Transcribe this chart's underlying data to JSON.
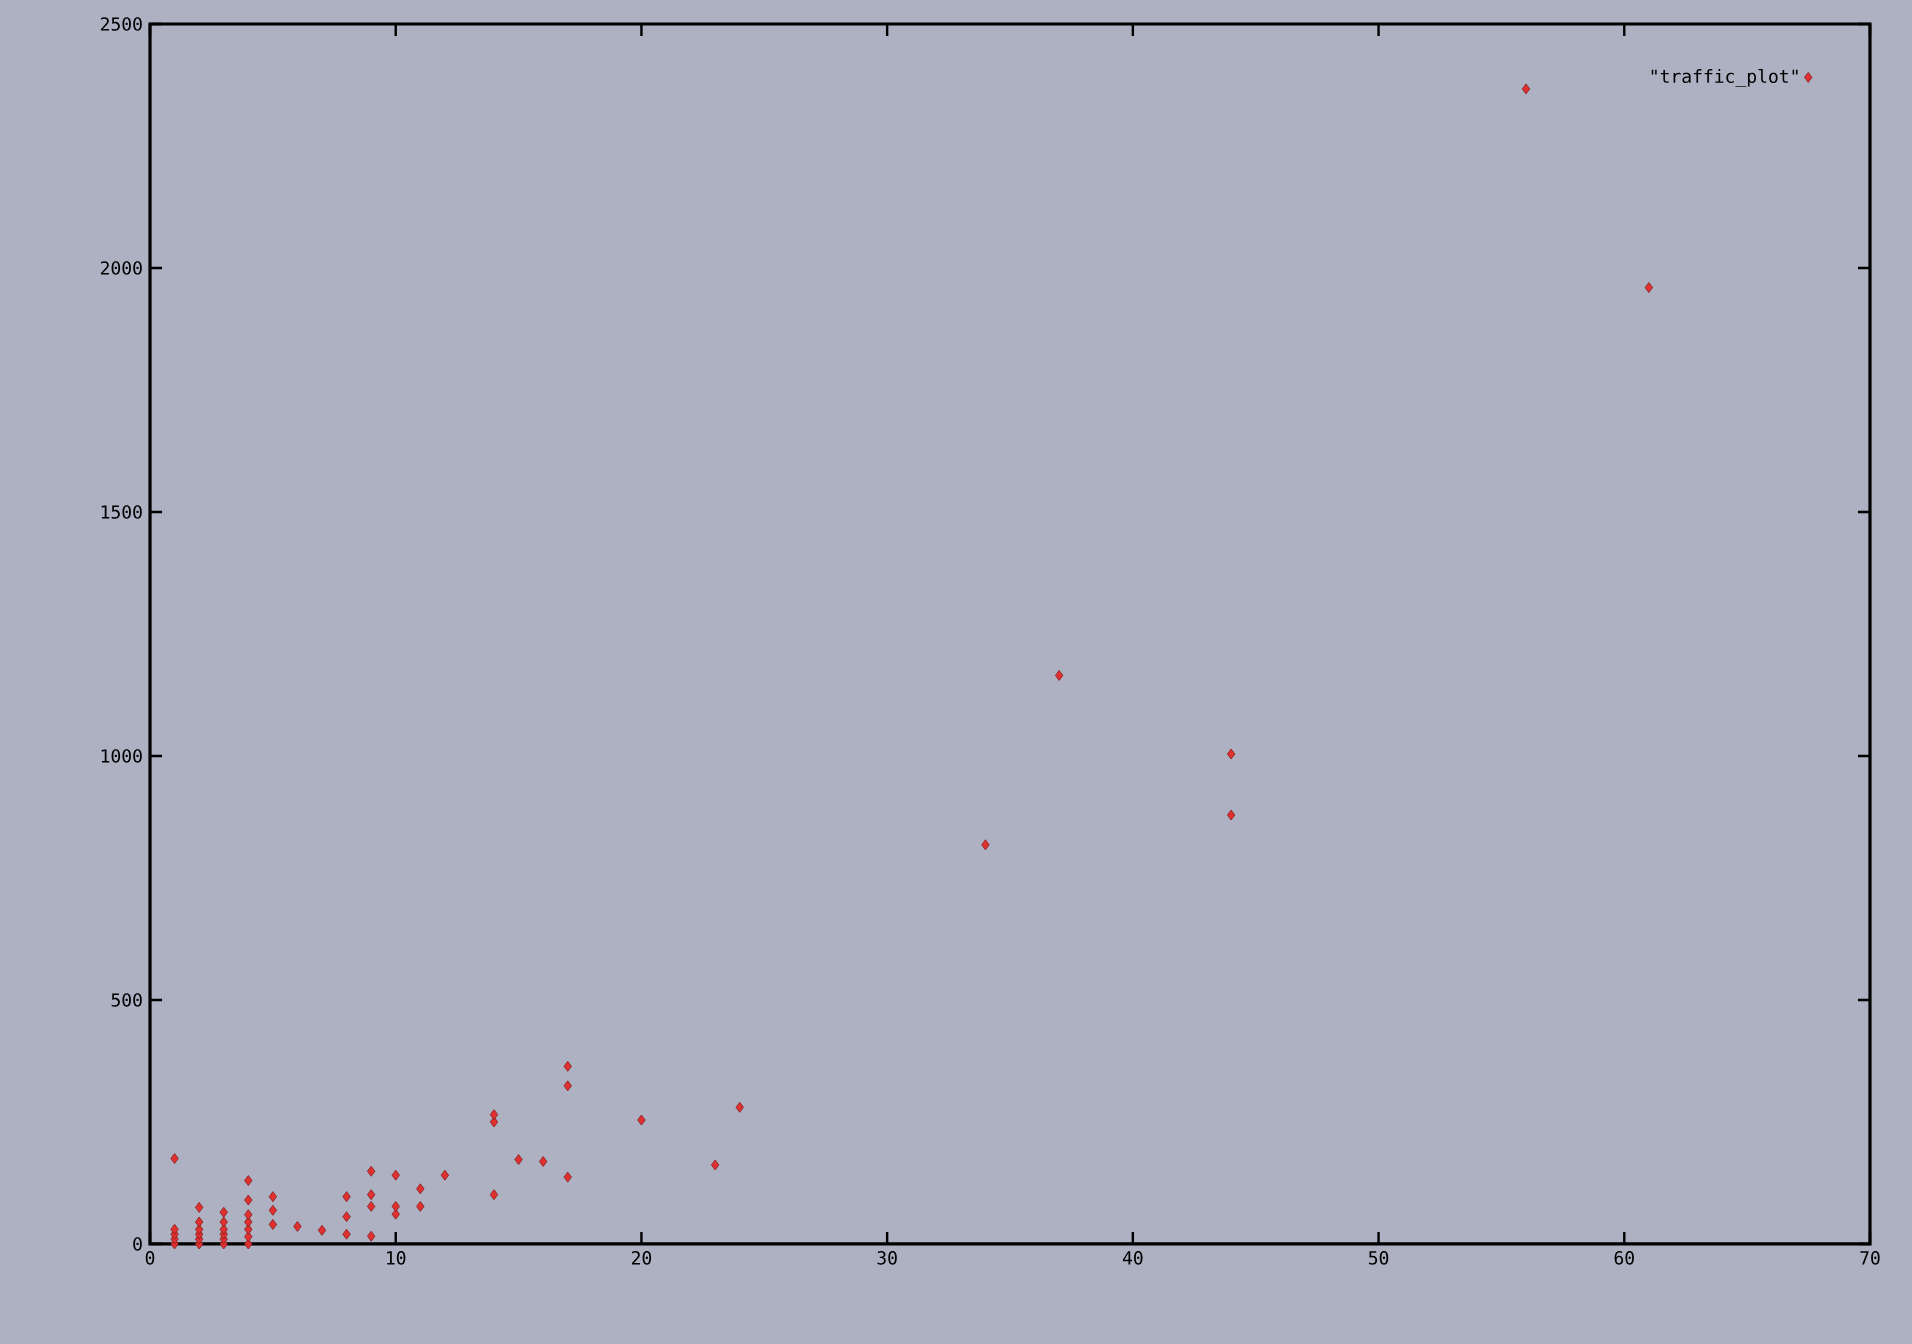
{
  "chart_data": {
    "type": "scatter",
    "xlim": [
      0,
      70
    ],
    "ylim": [
      0,
      2500
    ],
    "xticks": [
      0,
      10,
      20,
      30,
      40,
      50,
      60,
      70
    ],
    "yticks": [
      0,
      500,
      1000,
      1500,
      2000,
      2500
    ],
    "legend": "top right",
    "marker": "diamond",
    "grid": false,
    "series": [
      {
        "name": "\"traffic_plot\"",
        "color": "#e03030",
        "x": [
          1,
          1,
          1,
          1,
          1,
          2,
          2,
          2,
          2,
          2,
          2,
          3,
          3,
          3,
          3,
          3,
          3,
          4,
          4,
          4,
          4,
          4,
          4,
          4,
          5,
          5,
          5,
          6,
          7,
          8,
          8,
          8,
          9,
          9,
          9,
          9,
          10,
          10,
          10,
          11,
          11,
          12,
          14,
          14,
          14,
          15,
          16,
          17,
          17,
          17,
          20,
          23,
          24,
          34,
          37,
          44,
          44,
          56,
          61
        ],
        "values": [
          0,
          10,
          20,
          30,
          175,
          0,
          10,
          20,
          30,
          45,
          75,
          0,
          10,
          20,
          30,
          45,
          65,
          0,
          15,
          30,
          45,
          60,
          90,
          130,
          40,
          69,
          97,
          36,
          28,
          20,
          56,
          97,
          16,
          77,
          101,
          149,
          61,
          77,
          141,
          77,
          113,
          141,
          101,
          250,
          265,
          173,
          169,
          137,
          324,
          364,
          254,
          162,
          280,
          818,
          1165,
          879,
          1004,
          2367,
          1960
        ]
      }
    ]
  }
}
